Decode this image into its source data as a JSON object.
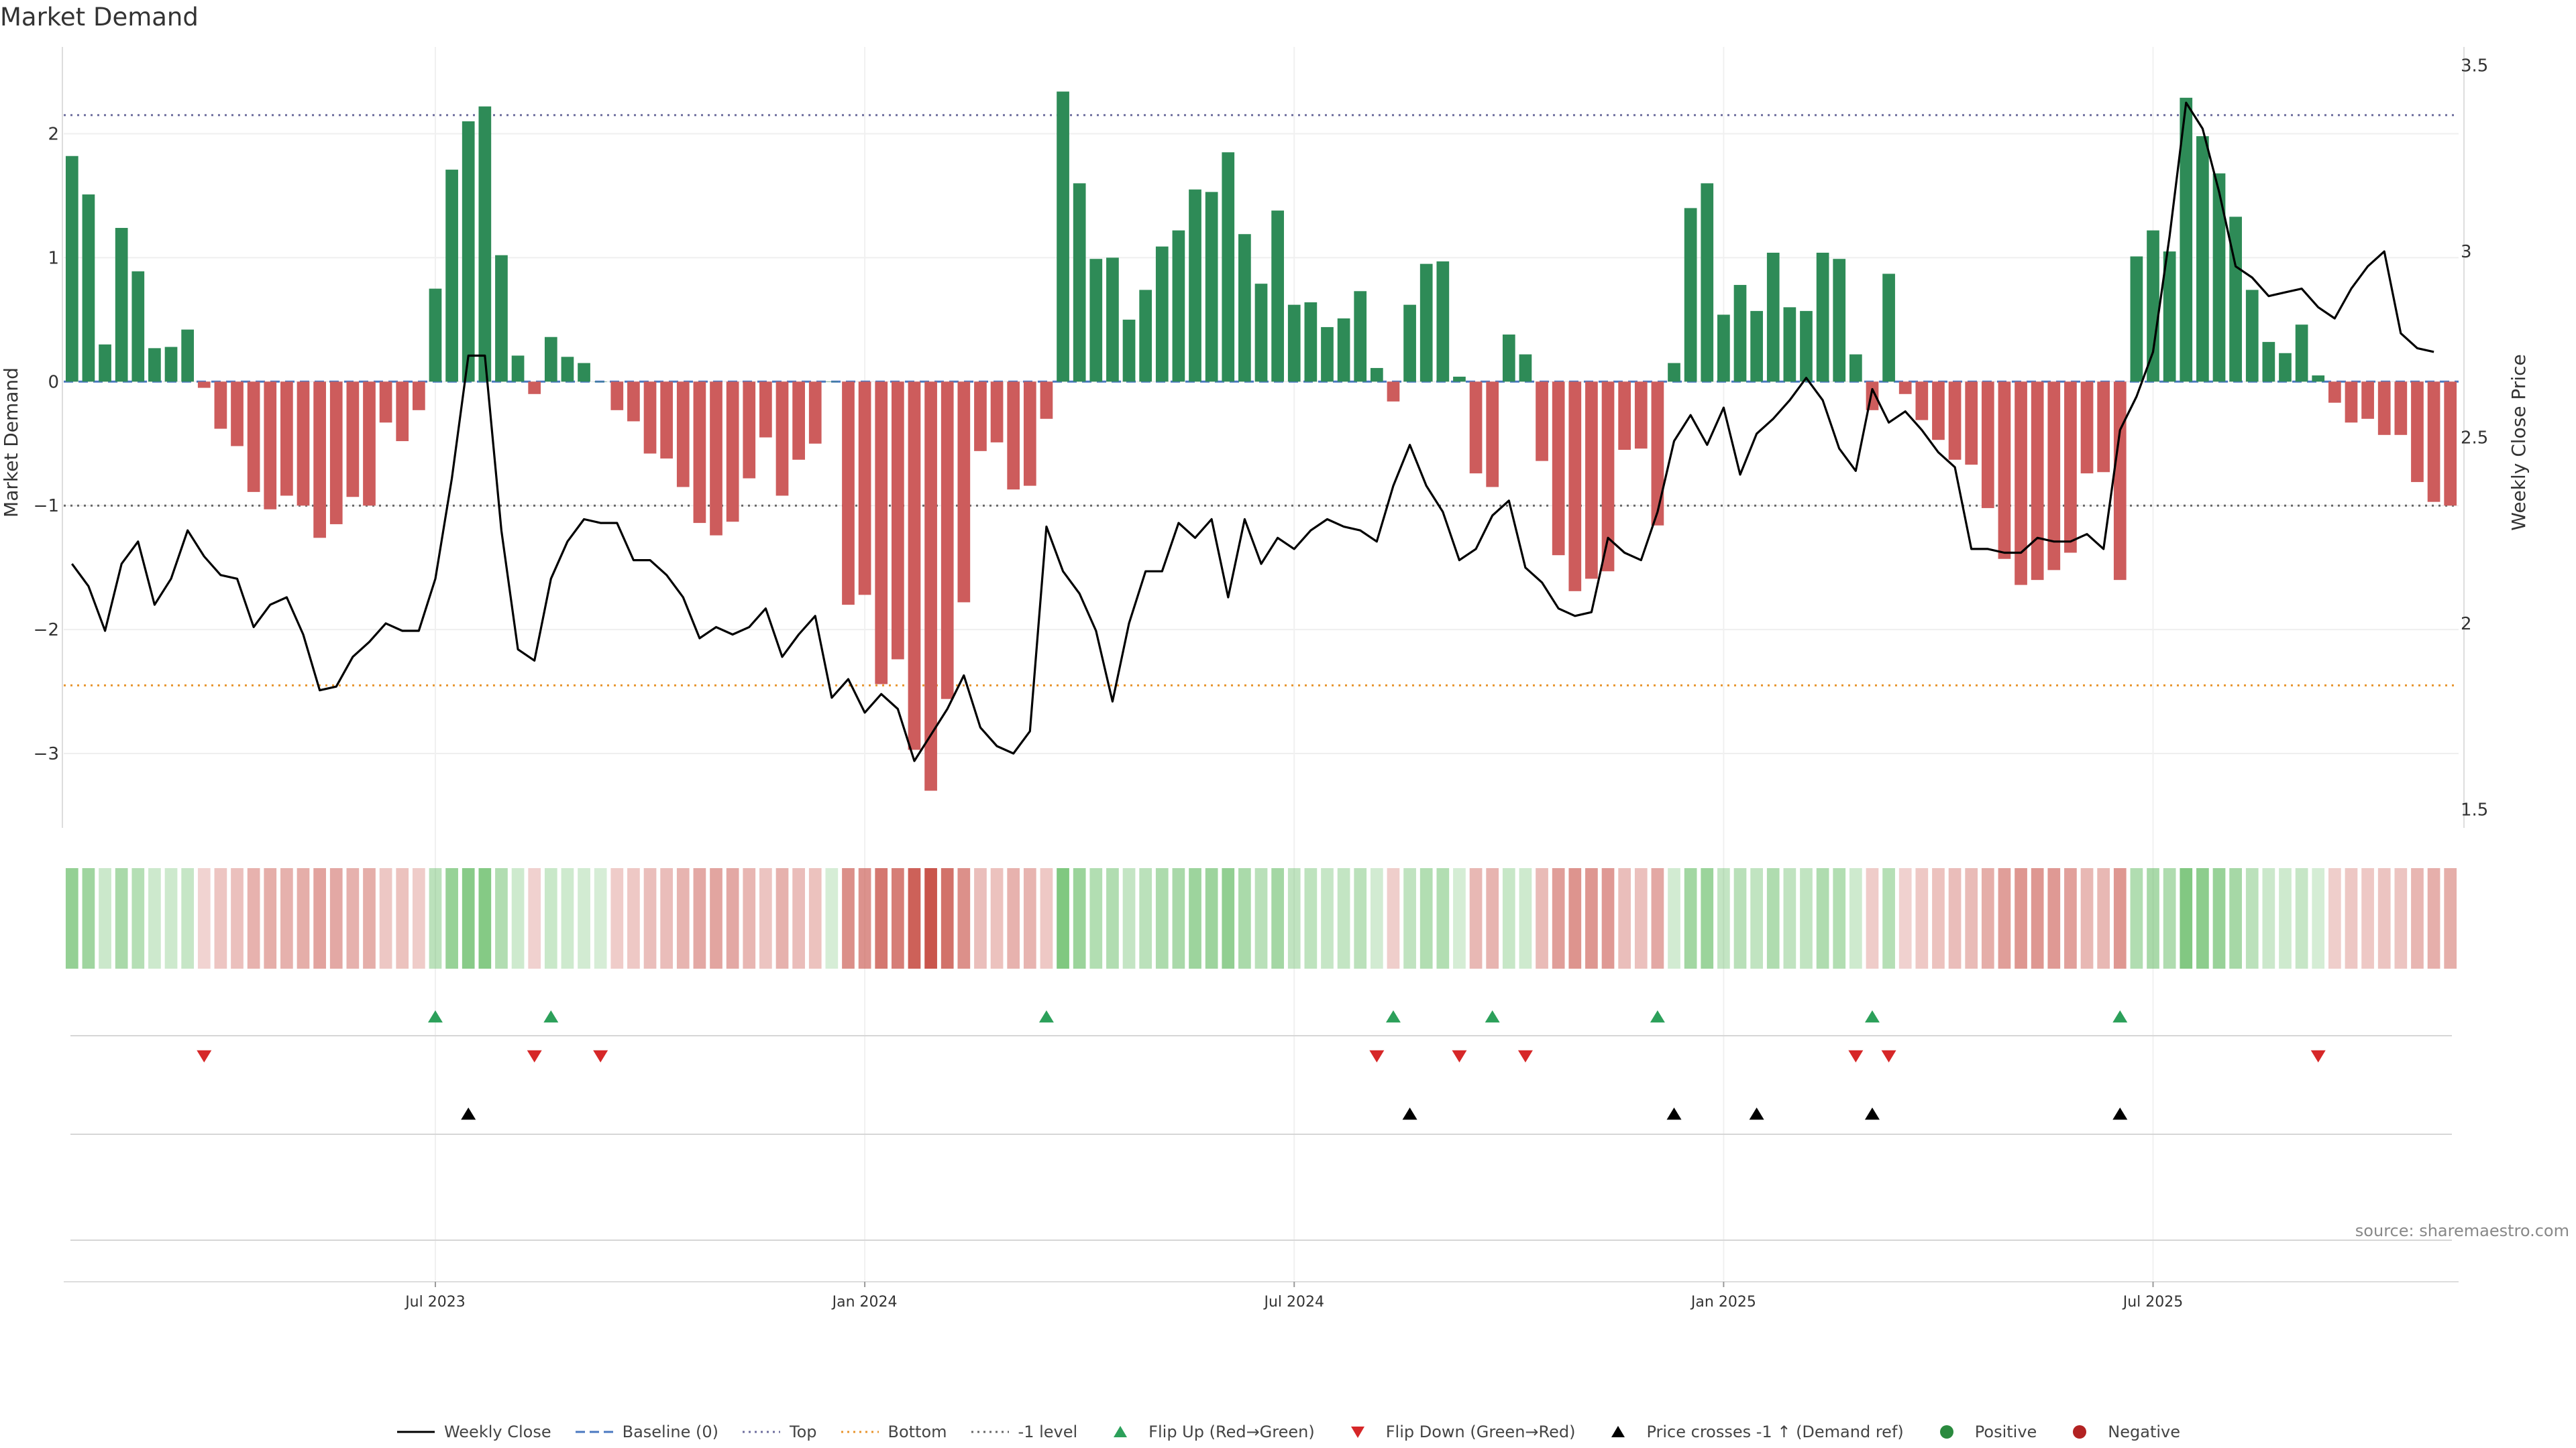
{
  "chart_data": {
    "type": "bar",
    "title": "Market Demand",
    "ylabel": "Market Demand",
    "y2label": "Weekly Close Price",
    "ylim": [
      -3.6,
      2.7
    ],
    "y2lim": [
      1.45,
      3.55
    ],
    "yticks": [
      "−3",
      "−2",
      "−1",
      "0",
      "1",
      "2"
    ],
    "y2ticks": [
      "1.5",
      "2",
      "2.5",
      "3",
      "3.5"
    ],
    "xticks": [
      "Jul 2023",
      "Jan 2024",
      "Jul 2024",
      "Jan 2025",
      "Jul 2025"
    ],
    "xtick_index": [
      22,
      48,
      74,
      100,
      126
    ],
    "reference_lines": {
      "top": 2.15,
      "bottom": -2.45,
      "minus_one": -1,
      "baseline": 0
    },
    "demand": [
      1.82,
      1.51,
      0.3,
      1.24,
      0.89,
      0.27,
      0.28,
      0.42,
      -0.05,
      -0.38,
      -0.52,
      -0.89,
      -1.03,
      -0.92,
      -1.0,
      -1.26,
      -1.15,
      -0.93,
      -1.0,
      -0.33,
      -0.48,
      -0.23,
      0.75,
      1.71,
      2.1,
      2.22,
      1.02,
      0.21,
      -0.1,
      0.36,
      0.2,
      0.15,
      0.0,
      -0.23,
      -0.32,
      -0.58,
      -0.62,
      -0.85,
      -1.14,
      -1.24,
      -1.13,
      -0.78,
      -0.45,
      -0.92,
      -0.63,
      -0.5,
      0.0,
      -1.8,
      -1.72,
      -2.44,
      -2.24,
      -2.97,
      -3.3,
      -2.56,
      -1.78,
      -0.56,
      -0.49,
      -0.87,
      -0.84,
      -0.3,
      2.34,
      1.6,
      0.99,
      1.0,
      0.5,
      0.74,
      1.09,
      1.22,
      1.55,
      1.53,
      1.85,
      1.19,
      0.79,
      1.38,
      0.62,
      0.64,
      0.44,
      0.51,
      0.73,
      0.11,
      -0.16,
      0.62,
      0.95,
      0.97,
      0.04,
      -0.74,
      -0.85,
      0.38,
      0.22,
      -0.64,
      -1.4,
      -1.69,
      -1.59,
      -1.53,
      -0.55,
      -0.54,
      -1.16,
      0.15,
      1.4,
      1.6,
      0.54,
      0.78,
      0.57,
      1.04,
      0.6,
      0.57,
      1.04,
      0.99,
      0.22,
      -0.23,
      0.87,
      -0.1,
      -0.31,
      -0.47,
      -0.63,
      -0.67,
      -1.02,
      -1.43,
      -1.64,
      -1.6,
      -1.52,
      -1.38,
      -0.74,
      -0.73,
      -1.6,
      1.01,
      1.22,
      1.05,
      2.29,
      1.98,
      1.68,
      1.33,
      0.74,
      0.32,
      0.23,
      0.46,
      0.05,
      -0.17,
      -0.33,
      -0.3,
      -0.43,
      -0.43,
      -0.81,
      -0.97,
      -1.0
    ],
    "close": [
      2.16,
      2.1,
      1.98,
      2.16,
      2.22,
      2.05,
      2.12,
      2.25,
      2.18,
      2.13,
      2.12,
      1.99,
      2.05,
      2.07,
      1.97,
      1.82,
      1.83,
      1.91,
      1.95,
      2.0,
      1.98,
      1.98,
      2.12,
      2.39,
      2.72,
      2.72,
      2.25,
      1.93,
      1.9,
      2.12,
      2.22,
      2.28,
      2.27,
      2.27,
      2.17,
      2.17,
      2.13,
      2.07,
      1.96,
      1.99,
      1.97,
      1.99,
      2.04,
      1.91,
      1.97,
      2.02,
      1.8,
      1.85,
      1.76,
      1.81,
      1.77,
      1.63,
      1.7,
      1.77,
      1.86,
      1.72,
      1.67,
      1.65,
      1.71,
      2.26,
      2.14,
      2.08,
      1.98,
      1.79,
      2.0,
      2.14,
      2.14,
      2.27,
      2.23,
      2.28,
      2.07,
      2.28,
      2.16,
      2.23,
      2.2,
      2.25,
      2.28,
      2.26,
      2.25,
      2.22,
      2.37,
      2.48,
      2.37,
      2.3,
      2.17,
      2.2,
      2.29,
      2.33,
      2.15,
      2.11,
      2.04,
      2.02,
      2.03,
      2.23,
      2.19,
      2.17,
      2.3,
      2.49,
      2.56,
      2.48,
      2.58,
      2.4,
      2.51,
      2.55,
      2.6,
      2.66,
      2.6,
      2.47,
      2.41,
      2.63,
      2.54,
      2.57,
      2.52,
      2.46,
      2.42,
      2.2,
      2.2,
      2.19,
      2.19,
      2.23,
      2.22,
      2.22,
      2.24,
      2.2,
      2.52,
      2.61,
      2.73,
      3.04,
      3.4,
      3.33,
      3.16,
      2.96,
      2.93,
      2.88,
      2.89,
      2.9,
      2.85,
      2.82,
      2.9,
      2.96,
      3.0,
      2.78,
      2.74,
      2.73
    ],
    "flip_up": [
      22,
      29,
      59,
      80,
      86,
      96,
      109,
      124
    ],
    "flip_down": [
      8,
      28,
      32,
      79,
      84,
      88,
      108,
      110,
      136
    ],
    "price_crosses": [
      24,
      81,
      97,
      102,
      109,
      124
    ]
  },
  "source_text": "source: sharemaestro.com",
  "legend": [
    {
      "label": "Weekly Close",
      "kind": "line",
      "color": "#000000"
    },
    {
      "label": "Baseline (0)",
      "kind": "dash",
      "color": "#4a78c0"
    },
    {
      "label": "Top",
      "kind": "dot",
      "color": "#6e6e9e"
    },
    {
      "label": "Bottom",
      "kind": "dot",
      "color": "#e8952e"
    },
    {
      "label": "-1 level",
      "kind": "dot",
      "color": "#666666"
    },
    {
      "label": "Flip Up (Red→Green)",
      "kind": "tri-up",
      "color": "#2ca05a"
    },
    {
      "label": "Flip Down (Green→Red)",
      "kind": "tri-down",
      "color": "#d62728"
    },
    {
      "label": "Price crosses -1 ↑ (Demand ref)",
      "kind": "tri-up",
      "color": "#000000"
    },
    {
      "label": "Positive",
      "kind": "circle",
      "color": "#2a8a3e"
    },
    {
      "label": "Negative",
      "kind": "circle",
      "color": "#b22222"
    }
  ],
  "colors": {
    "positive": "#2e8b57",
    "negative": "#cd5c5c",
    "heat_pos": "#5cb85c",
    "heat_neg": "#c9554c"
  }
}
